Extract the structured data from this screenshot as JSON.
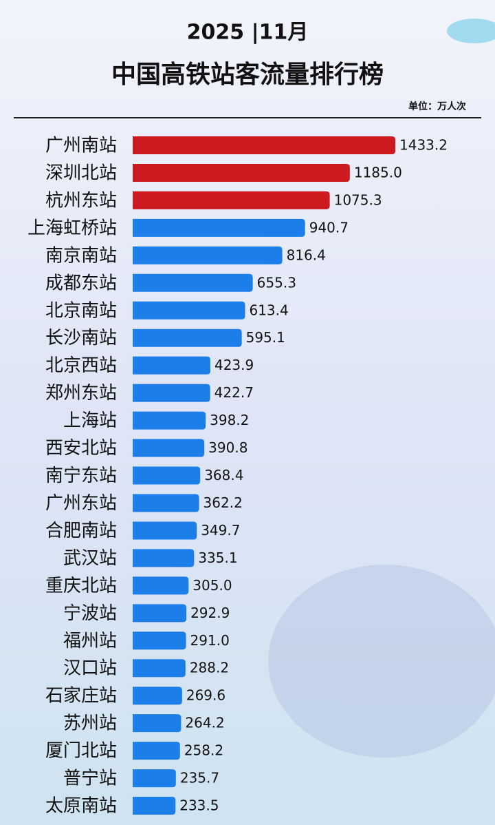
{
  "chart_data": {
    "type": "bar",
    "orientation": "horizontal",
    "header": "2025 |11月",
    "title": "中国高铁站客流量排行榜",
    "unit": "单位：万人次",
    "categories": [
      "广州南站",
      "深圳北站",
      "杭州东站",
      "上海虹桥站",
      "南京南站",
      "成都东站",
      "北京南站",
      "长沙南站",
      "北京西站",
      "郑州东站",
      "上海站",
      "西安北站",
      "南宁东站",
      "广州东站",
      "合肥南站",
      "武汉站",
      "重庆北站",
      "宁波站",
      "福州站",
      "汉口站",
      "石家庄站",
      "苏州站",
      "厦门北站",
      "普宁站",
      "太原南站"
    ],
    "values": [
      1433.2,
      1185.0,
      1075.3,
      940.7,
      816.4,
      655.3,
      613.4,
      595.1,
      423.9,
      422.7,
      398.2,
      390.8,
      368.4,
      362.2,
      349.7,
      335.1,
      305.0,
      292.9,
      291.0,
      288.2,
      269.6,
      264.2,
      258.2,
      235.7,
      233.5
    ],
    "value_labels": [
      "1433.2",
      "1185.0",
      "1075.3",
      "940.7",
      "816.4",
      "655.3",
      "613.4",
      "595.1",
      "423.9",
      "422.7",
      "398.2",
      "390.8",
      "368.4",
      "362.2",
      "349.7",
      "335.1",
      "305.0",
      "292.9",
      "291.0",
      "288.2",
      "269.6",
      "264.2",
      "258.2",
      "235.7",
      "233.5"
    ],
    "colors": [
      "#cc1a1f",
      "#cc1a1f",
      "#cc1a1f",
      "#1c7ee8",
      "#1c7ee8",
      "#1c7ee8",
      "#1c7ee8",
      "#1c7ee8",
      "#1c7ee8",
      "#1c7ee8",
      "#1c7ee8",
      "#1c7ee8",
      "#1c7ee8",
      "#1c7ee8",
      "#1c7ee8",
      "#1c7ee8",
      "#1c7ee8",
      "#1c7ee8",
      "#1c7ee8",
      "#1c7ee8",
      "#1c7ee8",
      "#1c7ee8",
      "#1c7ee8",
      "#1c7ee8",
      "#1c7ee8"
    ]
  }
}
